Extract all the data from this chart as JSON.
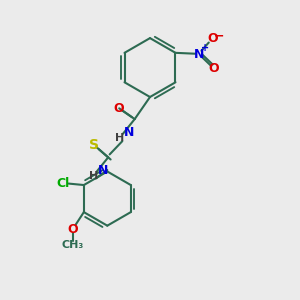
{
  "bg_color": "#ebebeb",
  "bond_color": "#2d6b52",
  "atom_colors": {
    "N": "#0000dd",
    "O": "#dd0000",
    "S": "#bbbb00",
    "Cl": "#00aa00",
    "C": "#2d6b52"
  },
  "figsize": [
    3.0,
    3.0
  ],
  "dpi": 100,
  "xlim": [
    0,
    10
  ],
  "ylim": [
    0,
    10
  ]
}
